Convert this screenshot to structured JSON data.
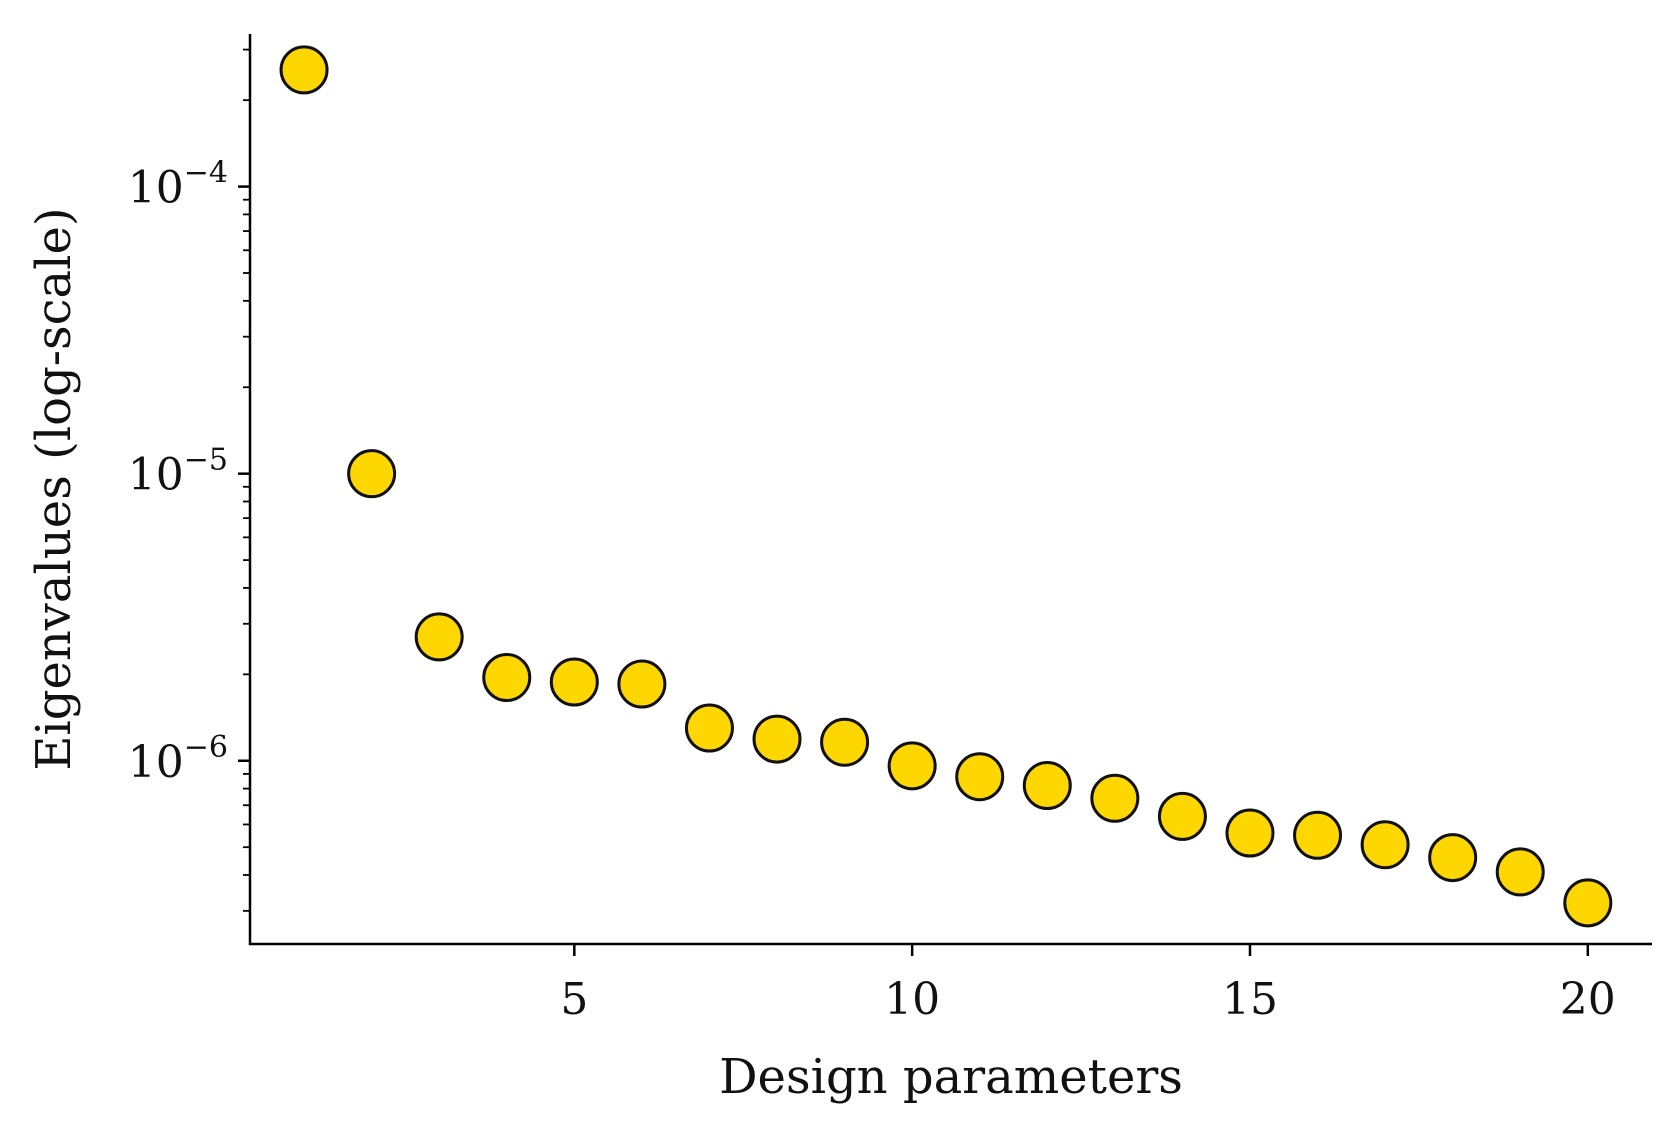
{
  "chart_data": {
    "type": "scatter",
    "title": "",
    "xlabel": "Design parameters",
    "ylabel": "Eigenvalues (log-scale)",
    "yscale": "log",
    "xlim": [
      0.2,
      20.95
    ],
    "ylim": [
      2.3e-07,
      0.00034
    ],
    "xticks": [
      5,
      10,
      15,
      20
    ],
    "xtick_labels": [
      "5",
      "10",
      "15",
      "20"
    ],
    "yticks": [
      {
        "value": 0.0001,
        "base": "10",
        "exp": "−4"
      },
      {
        "value": 1e-05,
        "base": "10",
        "exp": "−5"
      },
      {
        "value": 1e-06,
        "base": "10",
        "exp": "−6"
      }
    ],
    "grid": false,
    "marker_color": "#FFD700",
    "marker_edge_color": "#111111",
    "x": [
      1,
      2,
      3,
      4,
      5,
      6,
      7,
      8,
      9,
      10,
      11,
      12,
      13,
      14,
      15,
      16,
      17,
      18,
      19,
      20
    ],
    "y": [
      0.000255,
      1e-05,
      2.7e-06,
      1.95e-06,
      1.88e-06,
      1.85e-06,
      1.3e-06,
      1.19e-06,
      1.16e-06,
      9.6e-07,
      8.8e-07,
      8.2e-07,
      7.4e-07,
      6.4e-07,
      5.6e-07,
      5.5e-07,
      5.1e-07,
      4.6e-07,
      4.1e-07,
      3.2e-07
    ]
  }
}
